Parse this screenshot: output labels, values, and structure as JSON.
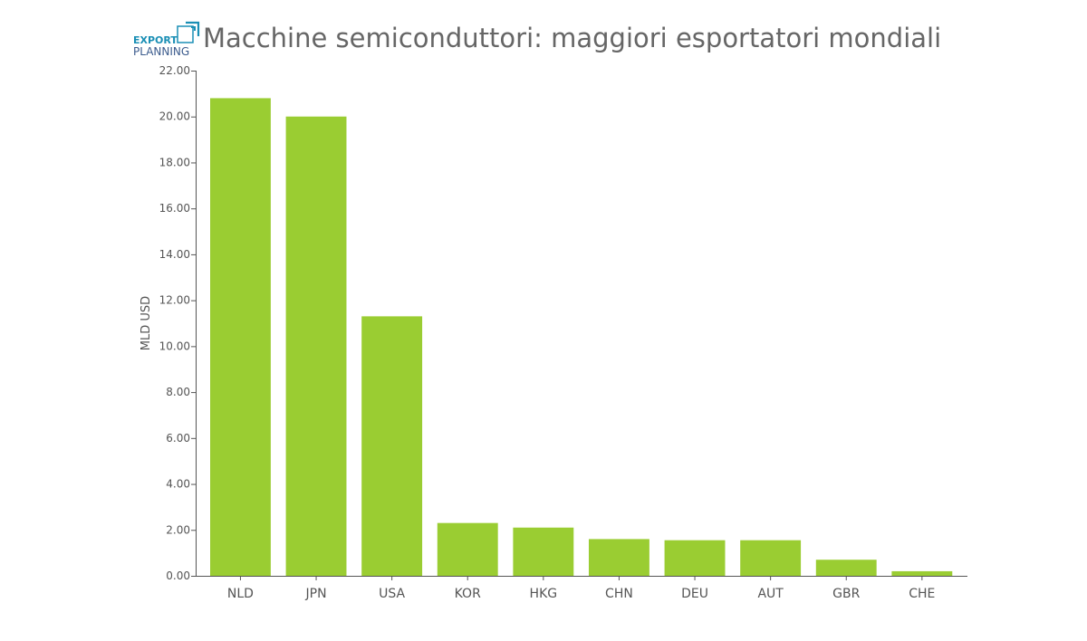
{
  "logo": {
    "line1": "EXPORT",
    "line2": "PLANNING",
    "color_primary": "#1a8fb5",
    "color_secondary": "#3a5a8c"
  },
  "colors": {
    "bar": "#9acd32",
    "axis": "#555555",
    "title": "#666666"
  },
  "chart_data": {
    "type": "bar",
    "title": "Macchine semiconduttori: maggiori esportatori mondiali",
    "xlabel": "",
    "ylabel": "MLD USD",
    "ylim": [
      0,
      22
    ],
    "yticks": [
      "0.00",
      "2.00",
      "4.00",
      "6.00",
      "8.00",
      "10.00",
      "12.00",
      "14.00",
      "16.00",
      "18.00",
      "20.00",
      "22.00"
    ],
    "categories": [
      "NLD",
      "JPN",
      "USA",
      "KOR",
      "HKG",
      "CHN",
      "DEU",
      "AUT",
      "GBR",
      "CHE"
    ],
    "values": [
      20.8,
      20.0,
      11.3,
      2.3,
      2.1,
      1.6,
      1.55,
      1.55,
      0.7,
      0.2
    ],
    "grid": false,
    "legend": "none"
  }
}
